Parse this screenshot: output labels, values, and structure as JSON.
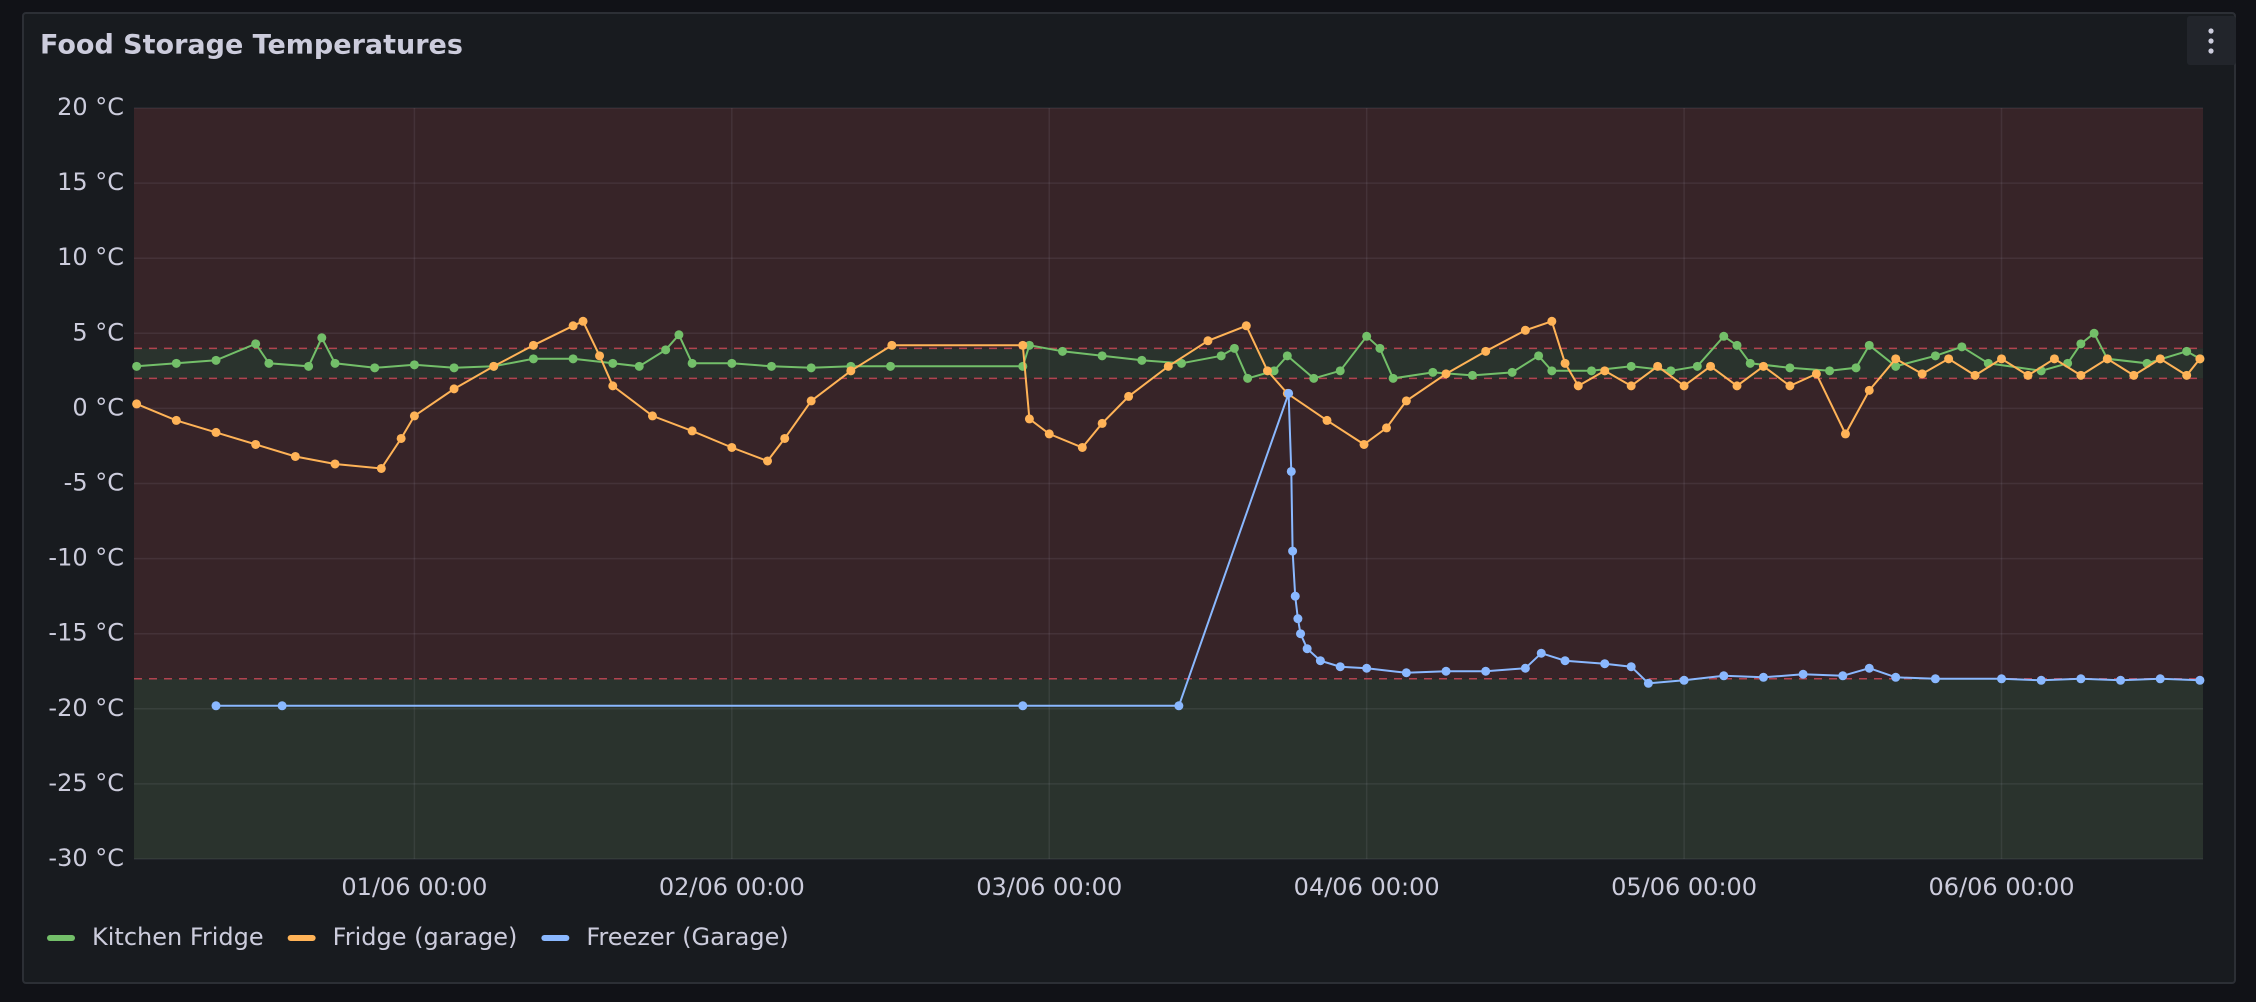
{
  "chart_data": {
    "type": "line",
    "title": "Food Storage Temperatures",
    "xlim": [
      "31/05 02:48",
      "06/06 15:14"
    ],
    "xticks": [
      "01/06 00:00",
      "02/06 00:00",
      "03/06 00:00",
      "04/06 00:00",
      "05/06 00:00",
      "06/06 00:00"
    ],
    "ylim": [
      -30,
      20
    ],
    "yticks": [
      {
        "value": 20,
        "label": "20 °C"
      },
      {
        "value": 15,
        "label": "15 °C"
      },
      {
        "value": 10,
        "label": "10 °C"
      },
      {
        "value": 5,
        "label": "5 °C"
      },
      {
        "value": 0,
        "label": "0 °C"
      },
      {
        "value": -5,
        "label": "-5 °C"
      },
      {
        "value": -10,
        "label": "-10 °C"
      },
      {
        "value": -15,
        "label": "-15 °C"
      },
      {
        "value": -20,
        "label": "-20 °C"
      },
      {
        "value": -25,
        "label": "-25 °C"
      },
      {
        "value": -30,
        "label": "-30 °C"
      }
    ],
    "grid": true,
    "legend": "bottom-left",
    "threshold_bands": [
      {
        "from": -30,
        "to": -18,
        "color": "#2a332d"
      },
      {
        "from": -18,
        "to": 2,
        "color": "#372428"
      },
      {
        "from": 2,
        "to": 4,
        "color": "#2a332d"
      },
      {
        "from": 4,
        "to": 20,
        "color": "#372428"
      }
    ],
    "threshold_lines": [
      -18,
      2,
      4
    ],
    "series": [
      {
        "name": "Kitchen Fridge",
        "color": "#73bf69",
        "x": [
          "31/05 03:00",
          "31/05 06:00",
          "31/05 09:00",
          "31/05 12:00",
          "31/05 13:00",
          "31/05 16:00",
          "31/05 17:00",
          "31/05 18:00",
          "31/05 21:00",
          "01/06 00:00",
          "01/06 03:00",
          "01/06 06:00",
          "01/06 09:00",
          "01/06 12:00",
          "01/06 15:00",
          "01/06 17:00",
          "01/06 19:00",
          "01/06 20:00",
          "01/06 21:00",
          "02/06 00:00",
          "02/06 03:00",
          "02/06 06:00",
          "02/06 09:00",
          "02/06 12:00",
          "02/06 22:00",
          "02/06 22:30",
          "03/06 01:00",
          "03/06 04:00",
          "03/06 07:00",
          "03/06 10:00",
          "03/06 13:00",
          "03/06 14:00",
          "03/06 15:00",
          "03/06 17:00",
          "03/06 18:00",
          "03/06 20:00",
          "03/06 22:00",
          "04/06 00:00",
          "04/06 01:00",
          "04/06 02:00",
          "04/06 05:00",
          "04/06 08:00",
          "04/06 11:00",
          "04/06 13:00",
          "04/06 14:00",
          "04/06 17:00",
          "04/06 20:00",
          "04/06 23:00",
          "05/06 01:00",
          "05/06 03:00",
          "05/06 04:00",
          "05/06 05:00",
          "05/06 08:00",
          "05/06 11:00",
          "05/06 13:00",
          "05/06 14:00",
          "05/06 16:00",
          "05/06 19:00",
          "05/06 21:00",
          "05/06 23:00",
          "06/06 03:00",
          "06/06 05:00",
          "06/06 06:00",
          "06/06 07:00",
          "06/06 08:00",
          "06/06 11:00",
          "06/06 14:00",
          "06/06 15:00"
        ],
        "values": [
          2.8,
          3.0,
          3.2,
          4.3,
          3.0,
          2.8,
          4.7,
          3.0,
          2.7,
          2.9,
          2.7,
          2.8,
          3.3,
          3.3,
          3.0,
          2.8,
          3.9,
          4.9,
          3.0,
          3.0,
          2.8,
          2.7,
          2.8,
          2.8,
          2.8,
          4.2,
          3.8,
          3.5,
          3.2,
          3.0,
          3.5,
          4.0,
          2.0,
          2.5,
          3.5,
          2.0,
          2.5,
          4.8,
          4.0,
          2.0,
          2.4,
          2.2,
          2.4,
          3.5,
          2.5,
          2.5,
          2.8,
          2.5,
          2.8,
          4.8,
          4.2,
          3.0,
          2.7,
          2.5,
          2.7,
          4.2,
          2.8,
          3.5,
          4.1,
          3.0,
          2.5,
          3.0,
          4.3,
          5.0,
          3.3,
          3.0,
          3.8,
          3.3
        ]
      },
      {
        "name": "Fridge (garage)",
        "color": "#ffb357",
        "x": [
          "31/05 03:00",
          "31/05 06:00",
          "31/05 09:00",
          "31/05 12:00",
          "31/05 15:00",
          "31/05 18:00",
          "31/05 21:30",
          "31/05 23:00",
          "01/06 00:00",
          "01/06 03:00",
          "01/06 06:00",
          "01/06 09:00",
          "01/06 12:00",
          "01/06 12:45",
          "01/06 14:00",
          "01/06 15:00",
          "01/06 18:00",
          "01/06 21:00",
          "02/06 00:00",
          "02/06 02:42",
          "02/06 04:00",
          "02/06 06:00",
          "02/06 09:00",
          "02/06 12:06",
          "02/06 22:00",
          "02/06 22:30",
          "03/06 00:00",
          "03/06 02:30",
          "03/06 04:00",
          "03/06 06:00",
          "03/06 09:00",
          "03/06 12:00",
          "03/06 14:54",
          "03/06 16:30",
          "03/06 18:00",
          "03/06 21:00",
          "03/06 23:48",
          "04/06 01:30",
          "04/06 03:00",
          "04/06 06:00",
          "04/06 09:00",
          "04/06 12:00",
          "04/06 14:00",
          "04/06 15:00",
          "04/06 16:00",
          "04/06 18:00",
          "04/06 20:00",
          "04/06 22:00",
          "05/06 00:00",
          "05/06 02:00",
          "05/06 04:00",
          "05/06 06:00",
          "05/06 08:00",
          "05/06 10:00",
          "05/06 12:12",
          "05/06 14:00",
          "05/06 16:00",
          "05/06 18:00",
          "05/06 20:00",
          "05/06 22:00",
          "06/06 00:00",
          "06/06 02:00",
          "06/06 04:00",
          "06/06 06:00",
          "06/06 08:00",
          "06/06 10:00",
          "06/06 12:00",
          "06/06 14:00",
          "06/06 15:00"
        ],
        "values": [
          0.3,
          -0.8,
          -1.6,
          -2.4,
          -3.2,
          -3.7,
          -4.0,
          -2.0,
          -0.5,
          1.3,
          2.8,
          4.2,
          5.5,
          5.8,
          3.5,
          1.5,
          -0.5,
          -1.5,
          -2.6,
          -3.5,
          -2.0,
          0.5,
          2.5,
          4.2,
          4.2,
          -0.7,
          -1.7,
          -2.6,
          -1.0,
          0.8,
          2.8,
          4.5,
          5.5,
          2.5,
          1.0,
          -0.8,
          -2.4,
          -1.3,
          0.5,
          2.3,
          3.8,
          5.2,
          5.8,
          3.0,
          1.5,
          2.5,
          1.5,
          2.8,
          1.5,
          2.8,
          1.5,
          2.8,
          1.5,
          2.3,
          -1.7,
          1.2,
          3.3,
          2.3,
          3.3,
          2.2,
          3.3,
          2.2,
          3.3,
          2.2,
          3.3,
          2.2,
          3.3,
          2.2,
          3.3
        ]
      },
      {
        "name": "Freezer (Garage)",
        "color": "#8ab8ff",
        "x": [
          "31/05 09:00",
          "31/05 14:00",
          "02/06 22:00",
          "03/06 09:48",
          "03/06 18:06",
          "03/06 18:18",
          "03/06 18:24",
          "03/06 18:36",
          "03/06 18:48",
          "03/06 19:00",
          "03/06 19:30",
          "03/06 20:30",
          "03/06 22:00",
          "04/06 00:00",
          "04/06 03:00",
          "04/06 06:00",
          "04/06 09:00",
          "04/06 12:00",
          "04/06 13:12",
          "04/06 15:00",
          "04/06 18:00",
          "04/06 20:00",
          "04/06 21:18",
          "05/06 00:00",
          "05/06 03:00",
          "05/06 06:00",
          "05/06 09:00",
          "05/06 12:00",
          "05/06 14:00",
          "05/06 16:00",
          "05/06 19:00",
          "06/06 00:00",
          "06/06 03:00",
          "06/06 06:00",
          "06/06 09:00",
          "06/06 12:00",
          "06/06 15:00"
        ],
        "values": [
          -19.8,
          -19.8,
          -19.8,
          -19.8,
          1.0,
          -4.2,
          -9.5,
          -12.5,
          -14.0,
          -15.0,
          -16.0,
          -16.8,
          -17.2,
          -17.3,
          -17.6,
          -17.5,
          -17.5,
          -17.3,
          -16.3,
          -16.8,
          -17.0,
          -17.2,
          -18.3,
          -18.1,
          -17.8,
          -17.9,
          -17.7,
          -17.8,
          -17.3,
          -17.9,
          -18.0,
          -18.0,
          -18.1,
          -18.0,
          -18.1,
          -18.0,
          -18.1
        ]
      }
    ]
  }
}
